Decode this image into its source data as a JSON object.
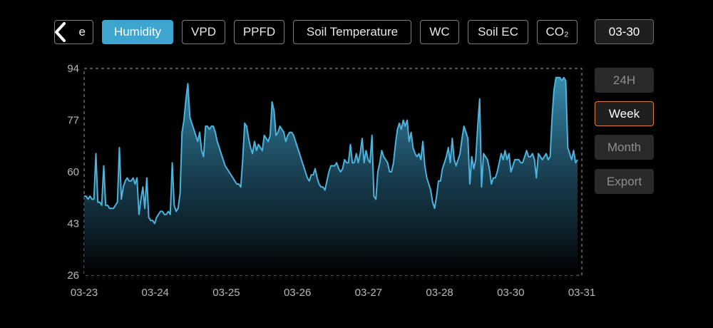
{
  "header": {
    "partial_tab_label": "e",
    "tabs": [
      {
        "label": "Humidity",
        "active": true
      },
      {
        "label": "VPD",
        "active": false
      },
      {
        "label": "PPFD",
        "active": false
      },
      {
        "label": "Soil Temperature",
        "active": false
      },
      {
        "label": "WC",
        "active": false
      },
      {
        "label": "Soil EC",
        "active": false
      },
      {
        "label": "CO₂",
        "active": false
      }
    ],
    "date_button": "03-30"
  },
  "side_buttons": [
    {
      "label": "24H",
      "selected": false
    },
    {
      "label": "Week",
      "selected": true
    },
    {
      "label": "Month",
      "selected": false
    },
    {
      "label": "Export",
      "selected": false
    }
  ],
  "colors": {
    "accent": "#3ea5cf",
    "line": "#4bb3dc",
    "selected_border": "#e07a45",
    "background": "#000000"
  },
  "chart_data": {
    "type": "area",
    "title": "",
    "xlabel": "",
    "ylabel": "",
    "ylim": [
      26,
      94
    ],
    "yticks": [
      "94",
      "77",
      "60",
      "43",
      "26"
    ],
    "xticks": [
      "03-23",
      "03-24",
      "03-25",
      "03-26",
      "03-27",
      "03-28",
      "03-30",
      "03-31"
    ],
    "grid": false,
    "series": [
      {
        "values": [
          52,
          52,
          51,
          52,
          51,
          51,
          66,
          50,
          50,
          49,
          62,
          49,
          49,
          48,
          48,
          48,
          49,
          50,
          68,
          51,
          55,
          57,
          58,
          57,
          57,
          58,
          56,
          58,
          46,
          51,
          55,
          48,
          58,
          45,
          44,
          44,
          43,
          45,
          46,
          47,
          47,
          46,
          46,
          47,
          46,
          63,
          49,
          47,
          48,
          53,
          73,
          77,
          84,
          89,
          78,
          76,
          74,
          72,
          70,
          73,
          67,
          65,
          75,
          75,
          74,
          75,
          75,
          73,
          70,
          68,
          66,
          64,
          62,
          61,
          60,
          59,
          58,
          57,
          56,
          56,
          55,
          64,
          76,
          75,
          71,
          68,
          66,
          70,
          67,
          69,
          68,
          67,
          72,
          71,
          70,
          72,
          83,
          80,
          72,
          73,
          75,
          74,
          73,
          70,
          72,
          73,
          73,
          72,
          70,
          68,
          66,
          64,
          62,
          60,
          58,
          57,
          59,
          59,
          61,
          58,
          56,
          55,
          55,
          54,
          57,
          60,
          62,
          62,
          62,
          63,
          61,
          60,
          61,
          64,
          63,
          63,
          69,
          63,
          63,
          66,
          63,
          66,
          71,
          63,
          67,
          64,
          63,
          72,
          52,
          51,
          60,
          63,
          67,
          65,
          64,
          63,
          60,
          60,
          63,
          69,
          74,
          76,
          74,
          77,
          75,
          77,
          70,
          73,
          68,
          66,
          65,
          66,
          64,
          70,
          62,
          58,
          56,
          54,
          50,
          48,
          52,
          57,
          57,
          61,
          63,
          65,
          68,
          63,
          71,
          64,
          62,
          64,
          66,
          71,
          75,
          73,
          71,
          56,
          65,
          61,
          64,
          75,
          84,
          55,
          66,
          65,
          64,
          61,
          56,
          58,
          58,
          60,
          63,
          66,
          64,
          67,
          64,
          66,
          60,
          62,
          64,
          64,
          64,
          63,
          63,
          65,
          67,
          65,
          65,
          66,
          64,
          58,
          66,
          65,
          64,
          65,
          66,
          64,
          65,
          78,
          87,
          91,
          91,
          91,
          90,
          91,
          90,
          68,
          66,
          64,
          67,
          63,
          64
        ]
      }
    ]
  }
}
